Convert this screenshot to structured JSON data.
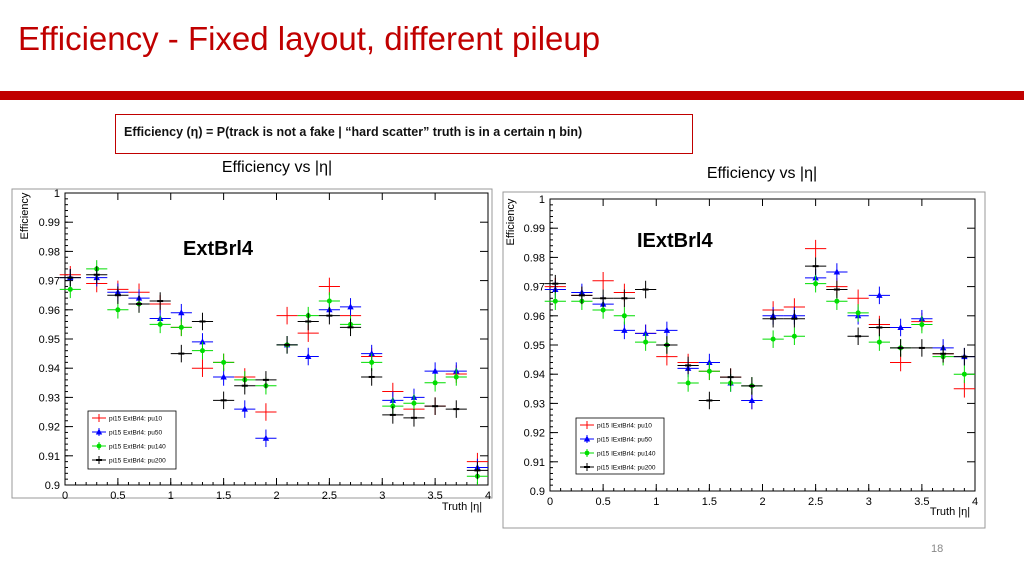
{
  "slide": {
    "title": "Efficiency - Fixed layout, different pileup",
    "definition": "Efficiency (η) = P(track is not a fake | “hard scatter” truth is in a certain η bin)",
    "page_number": "18"
  },
  "chart_data": [
    {
      "type": "scatter",
      "title": "Efficiency vs |η|",
      "label": "ExtBrl4",
      "xlabel": "Truth |η|",
      "ylabel": "Efficiency",
      "xlim": [
        0,
        4
      ],
      "ylim": [
        0.9,
        1.0
      ],
      "xticks": [
        "0",
        "0.5",
        "1",
        "1.5",
        "2",
        "2.5",
        "3",
        "3.5",
        "4"
      ],
      "yticks": [
        "0.9",
        "0.91",
        "0.92",
        "0.93",
        "0.94",
        "0.95",
        "0.96",
        "0.97",
        "0.98",
        "0.99",
        "1"
      ],
      "legend_position": "bottom-left",
      "series": [
        {
          "name": "pi15 ExtBrl4: pu10",
          "color": "#ff0000",
          "marker": "none",
          "x": [
            0.05,
            0.3,
            0.5,
            0.7,
            0.9,
            1.1,
            1.3,
            1.5,
            1.7,
            1.9,
            2.1,
            2.3,
            2.5,
            2.7,
            2.9,
            3.1,
            3.3,
            3.5,
            3.7,
            3.9
          ],
          "y": [
            0.972,
            0.969,
            0.967,
            0.966,
            0.962,
            0.954,
            0.94,
            0.942,
            0.937,
            0.925,
            0.958,
            0.952,
            0.968,
            0.958,
            0.944,
            0.932,
            0.926,
            0.927,
            0.938,
            0.908
          ]
        },
        {
          "name": "pi15 ExtBrl4: pu50",
          "color": "#0000ff",
          "marker": "triangle",
          "x": [
            0.05,
            0.3,
            0.5,
            0.7,
            0.9,
            1.1,
            1.3,
            1.5,
            1.7,
            1.9,
            2.1,
            2.3,
            2.5,
            2.7,
            2.9,
            3.1,
            3.3,
            3.5,
            3.7,
            3.9
          ],
          "y": [
            0.971,
            0.971,
            0.966,
            0.964,
            0.957,
            0.959,
            0.949,
            0.937,
            0.926,
            0.916,
            0.948,
            0.944,
            0.96,
            0.961,
            0.945,
            0.929,
            0.93,
            0.939,
            0.939,
            0.906
          ]
        },
        {
          "name": "pi15 ExtBrl4: pu140",
          "color": "#00dd00",
          "marker": "circle",
          "x": [
            0.05,
            0.3,
            0.5,
            0.7,
            0.9,
            1.1,
            1.3,
            1.5,
            1.7,
            1.9,
            2.1,
            2.3,
            2.5,
            2.7,
            2.9,
            3.1,
            3.3,
            3.5,
            3.7,
            3.9
          ],
          "y": [
            0.967,
            0.974,
            0.96,
            0.962,
            0.955,
            0.954,
            0.946,
            0.942,
            0.936,
            0.934,
            0.948,
            0.958,
            0.963,
            0.955,
            0.942,
            0.927,
            0.928,
            0.935,
            0.937,
            0.903
          ]
        },
        {
          "name": "pi15 ExtBrl4: pu200",
          "color": "#000000",
          "marker": "cross",
          "x": [
            0.05,
            0.3,
            0.5,
            0.7,
            0.9,
            1.1,
            1.3,
            1.5,
            1.7,
            1.9,
            2.1,
            2.3,
            2.5,
            2.7,
            2.9,
            3.1,
            3.3,
            3.5,
            3.7,
            3.9
          ],
          "y": [
            0.971,
            0.972,
            0.965,
            0.962,
            0.963,
            0.945,
            0.956,
            0.929,
            0.934,
            0.936,
            0.948,
            0.956,
            0.958,
            0.954,
            0.937,
            0.924,
            0.923,
            0.927,
            0.926,
            0.905
          ]
        }
      ]
    },
    {
      "type": "scatter",
      "title": "Efficiency vs |η|",
      "label": "IExtBrl4",
      "xlabel": "Truth |η|",
      "ylabel": "Efficiency",
      "xlim": [
        0,
        4
      ],
      "ylim": [
        0.9,
        1.0
      ],
      "xticks": [
        "0",
        "0.5",
        "1",
        "1.5",
        "2",
        "2.5",
        "3",
        "3.5",
        "4"
      ],
      "yticks": [
        "0.9",
        "0.91",
        "0.92",
        "0.93",
        "0.94",
        "0.95",
        "0.96",
        "0.97",
        "0.98",
        "0.99",
        "1"
      ],
      "legend_position": "bottom-left",
      "series": [
        {
          "name": "pi15 IExtBrl4: pu10",
          "color": "#ff0000",
          "marker": "none",
          "x": [
            0.05,
            0.3,
            0.5,
            0.7,
            0.9,
            1.1,
            1.3,
            1.5,
            1.7,
            1.9,
            2.1,
            2.3,
            2.5,
            2.7,
            2.9,
            3.1,
            3.3,
            3.5,
            3.7,
            3.9
          ],
          "y": [
            0.97,
            0.967,
            0.972,
            0.968,
            0.954,
            0.946,
            0.944,
            0.941,
            0.939,
            0.931,
            0.962,
            0.963,
            0.983,
            0.97,
            0.966,
            0.957,
            0.944,
            0.958,
            0.947,
            0.935
          ]
        },
        {
          "name": "pi15 IExtBrl4: pu50",
          "color": "#0000ff",
          "marker": "triangle",
          "x": [
            0.05,
            0.3,
            0.5,
            0.7,
            0.9,
            1.1,
            1.3,
            1.5,
            1.7,
            1.9,
            2.1,
            2.3,
            2.5,
            2.7,
            2.9,
            3.1,
            3.3,
            3.5,
            3.7,
            3.9
          ],
          "y": [
            0.969,
            0.968,
            0.964,
            0.955,
            0.954,
            0.955,
            0.942,
            0.944,
            0.937,
            0.931,
            0.96,
            0.96,
            0.973,
            0.975,
            0.96,
            0.967,
            0.956,
            0.959,
            0.949,
            0.946
          ]
        },
        {
          "name": "pi15 IExtBrl4: pu140",
          "color": "#00dd00",
          "marker": "circle",
          "x": [
            0.05,
            0.3,
            0.5,
            0.7,
            0.9,
            1.1,
            1.3,
            1.5,
            1.7,
            1.9,
            2.1,
            2.3,
            2.5,
            2.7,
            2.9,
            3.1,
            3.3,
            3.5,
            3.7,
            3.9
          ],
          "y": [
            0.965,
            0.965,
            0.962,
            0.96,
            0.951,
            0.95,
            0.937,
            0.941,
            0.937,
            0.936,
            0.952,
            0.953,
            0.971,
            0.965,
            0.961,
            0.951,
            0.949,
            0.957,
            0.946,
            0.94
          ]
        },
        {
          "name": "pi15 IExtBrl4: pu200",
          "color": "#000000",
          "marker": "cross",
          "x": [
            0.05,
            0.3,
            0.5,
            0.7,
            0.9,
            1.1,
            1.3,
            1.5,
            1.7,
            1.9,
            2.1,
            2.3,
            2.5,
            2.7,
            2.9,
            3.1,
            3.3,
            3.5,
            3.7,
            3.9
          ],
          "y": [
            0.971,
            0.967,
            0.966,
            0.966,
            0.969,
            0.95,
            0.943,
            0.931,
            0.939,
            0.936,
            0.959,
            0.959,
            0.977,
            0.969,
            0.953,
            0.956,
            0.949,
            0.949,
            0.947,
            0.946
          ]
        }
      ]
    }
  ]
}
